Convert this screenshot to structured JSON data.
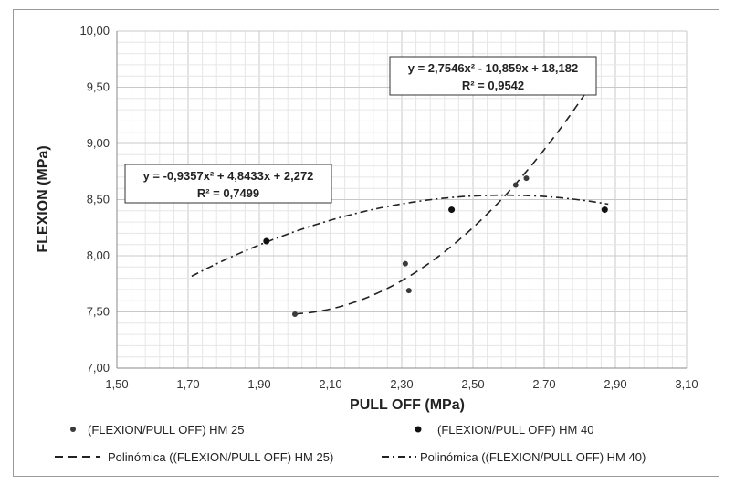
{
  "chart_data": {
    "type": "scatter",
    "xlabel": "PULL OFF (MPa)",
    "ylabel": "FLEXION (MPa)",
    "xlim": [
      1.5,
      3.1
    ],
    "ylim": [
      7.0,
      10.0
    ],
    "x_ticks": [
      "1,50",
      "1,70",
      "1,90",
      "2,10",
      "2,30",
      "2,50",
      "2,70",
      "2,90",
      "3,10"
    ],
    "y_ticks": [
      "7,00",
      "7,50",
      "8,00",
      "8,50",
      "9,00",
      "9,50",
      "10,00"
    ],
    "grid": true,
    "legend_position": "bottom",
    "series": [
      {
        "name": "(FLEXION/PULL OFF) HM 25",
        "color": "#3a3a3a",
        "points": [
          [
            2.0,
            7.48
          ],
          [
            2.31,
            7.93
          ],
          [
            2.32,
            7.69
          ],
          [
            2.62,
            8.63
          ],
          [
            2.65,
            8.69
          ]
        ]
      },
      {
        "name": "(FLEXION/PULL OFF) HM 40",
        "color": "#111111",
        "points": [
          [
            1.92,
            8.13
          ],
          [
            2.44,
            8.41
          ],
          [
            2.87,
            8.41
          ]
        ]
      }
    ],
    "trendlines": [
      {
        "name": "Polinómica ((FLEXION/PULL OFF) HM 25)",
        "style": "dashed",
        "coefficients": [
          2.7546,
          -10.859,
          18.182
        ],
        "x_range": [
          2.0,
          2.82
        ],
        "equation": "y = 2,7546x² - 10,859x + 18,182",
        "r2": "R² = 0,9542"
      },
      {
        "name": "Polinómica ((FLEXION/PULL OFF) HM 40)",
        "style": "dashdot",
        "coefficients": [
          -0.9357,
          4.8433,
          2.272
        ],
        "x_range": [
          1.71,
          2.88
        ],
        "equation": "y = -0,9357x² + 4,8433x + 2,272",
        "r2": "R² = 0,7499"
      }
    ]
  }
}
